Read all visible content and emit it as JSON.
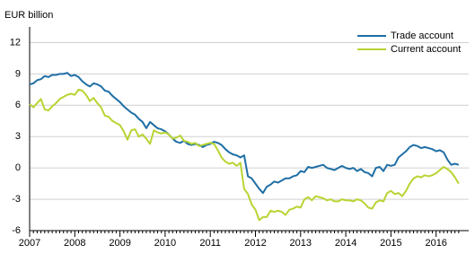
{
  "chart_data": {
    "type": "line",
    "y_label": "EUR billion",
    "categories": [
      "2007",
      null,
      null,
      null,
      null,
      null,
      null,
      null,
      null,
      null,
      null,
      null,
      "2008",
      null,
      null,
      null,
      null,
      null,
      null,
      null,
      null,
      null,
      null,
      null,
      "2009",
      null,
      null,
      null,
      null,
      null,
      null,
      null,
      null,
      null,
      null,
      null,
      "2010",
      null,
      null,
      null,
      null,
      null,
      null,
      null,
      null,
      null,
      null,
      null,
      "2011",
      null,
      null,
      null,
      null,
      null,
      null,
      null,
      null,
      null,
      null,
      null,
      "2012",
      null,
      null,
      null,
      null,
      null,
      null,
      null,
      null,
      null,
      null,
      null,
      "2013",
      null,
      null,
      null,
      null,
      null,
      null,
      null,
      null,
      null,
      null,
      null,
      "2014",
      null,
      null,
      null,
      null,
      null,
      null,
      null,
      null,
      null,
      null,
      null,
      "2015",
      null,
      null,
      null,
      null,
      null,
      null,
      null,
      null,
      null,
      null,
      null,
      "2016",
      null,
      null,
      null,
      null,
      null,
      null
    ],
    "series": [
      {
        "name": "Trade account",
        "color": "#1f6fa5",
        "values": [
          8.0,
          8.1,
          8.4,
          8.5,
          8.8,
          8.7,
          8.9,
          8.9,
          9.0,
          9.0,
          9.1,
          8.8,
          8.9,
          8.7,
          8.3,
          8.0,
          7.8,
          8.1,
          8.0,
          7.8,
          7.4,
          7.3,
          6.9,
          6.6,
          6.3,
          5.9,
          5.6,
          5.3,
          5.1,
          4.7,
          4.4,
          3.8,
          4.4,
          4.1,
          3.8,
          3.7,
          3.5,
          3.2,
          2.8,
          2.5,
          2.4,
          2.6,
          2.3,
          2.2,
          2.3,
          2.2,
          2.0,
          2.2,
          2.3,
          2.5,
          2.4,
          2.2,
          1.8,
          1.5,
          1.3,
          1.2,
          1.0,
          1.2,
          -0.8,
          -1.0,
          -1.5,
          -2.0,
          -2.4,
          -1.8,
          -1.6,
          -1.3,
          -1.4,
          -1.2,
          -1.0,
          -1.0,
          -0.8,
          -0.7,
          -0.3,
          -0.4,
          0.1,
          0.0,
          0.1,
          0.2,
          0.3,
          0.0,
          -0.1,
          -0.2,
          0.0,
          0.2,
          0.0,
          -0.1,
          0.0,
          -0.3,
          -0.1,
          -0.4,
          -0.5,
          -0.8,
          0.0,
          0.1,
          -0.3,
          0.3,
          0.2,
          0.3,
          1.0,
          1.3,
          1.6,
          2.0,
          2.2,
          2.1,
          1.9,
          2.0,
          1.9,
          1.8,
          1.6,
          1.7,
          1.5,
          0.8,
          0.3,
          0.4,
          0.3
        ]
      },
      {
        "name": "Current account",
        "color": "#b8d432",
        "values": [
          6.1,
          5.8,
          6.2,
          6.6,
          5.6,
          5.5,
          5.9,
          6.2,
          6.6,
          6.8,
          7.0,
          7.1,
          7.0,
          7.5,
          7.4,
          7.0,
          6.4,
          6.7,
          6.2,
          5.8,
          5.0,
          4.9,
          4.5,
          4.3,
          4.1,
          3.5,
          2.7,
          3.6,
          3.7,
          3.0,
          3.2,
          2.8,
          2.3,
          3.6,
          3.4,
          3.3,
          3.4,
          3.2,
          2.8,
          2.9,
          3.1,
          2.6,
          2.5,
          2.3,
          2.4,
          2.1,
          2.2,
          2.3,
          2.4,
          2.3,
          1.7,
          1.0,
          0.6,
          0.4,
          0.5,
          0.2,
          0.5,
          -2.0,
          -2.5,
          -3.5,
          -4.0,
          -5.0,
          -4.7,
          -4.7,
          -4.1,
          -4.2,
          -4.1,
          -4.2,
          -4.5,
          -4.0,
          -3.9,
          -3.7,
          -3.8,
          -3.0,
          -2.8,
          -3.1,
          -2.7,
          -2.8,
          -2.9,
          -3.1,
          -3.0,
          -3.2,
          -3.2,
          -3.0,
          -3.1,
          -3.1,
          -3.2,
          -3.0,
          -3.1,
          -3.4,
          -3.8,
          -3.9,
          -3.3,
          -3.1,
          -3.2,
          -2.4,
          -2.2,
          -2.5,
          -2.4,
          -2.7,
          -2.2,
          -1.5,
          -1.0,
          -0.8,
          -0.9,
          -0.7,
          -0.8,
          -0.7,
          -0.5,
          -0.2,
          0.1,
          -0.1,
          -0.4,
          -0.9,
          -1.5
        ]
      }
    ],
    "ylim": [
      -6,
      13.5
    ],
    "yticks": [
      -6,
      -3,
      0,
      3,
      6,
      9,
      12
    ],
    "grid": true,
    "legend": "upper right"
  }
}
